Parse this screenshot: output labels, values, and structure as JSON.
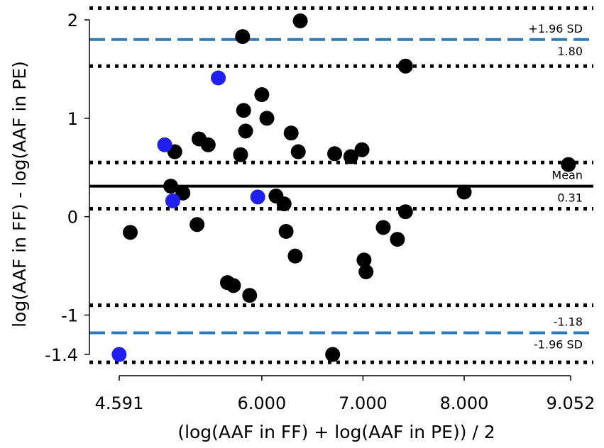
{
  "chart_data": {
    "type": "scatter",
    "xlabel": "(log(AAF in FF) + log(AAF in PE)) / 2",
    "ylabel": "log(AAF in FF) - log(AAF in PE)",
    "xlim": [
      4.591,
      9.052
    ],
    "ylim": [
      -1.4,
      2.0
    ],
    "x_ticks": [
      {
        "value": 4.591,
        "label": "4.591"
      },
      {
        "value": 6.0,
        "label": "6.000"
      },
      {
        "value": 7.0,
        "label": "7.000"
      },
      {
        "value": 8.0,
        "label": "8.000"
      },
      {
        "value": 9.052,
        "label": "9.052"
      }
    ],
    "y_ticks": [
      {
        "value": 2,
        "label": "2"
      },
      {
        "value": 1,
        "label": "1"
      },
      {
        "value": 0,
        "label": "0"
      },
      {
        "value": -1,
        "label": "-1"
      },
      {
        "value": -1.4,
        "label": "-1.4"
      }
    ],
    "grid": false,
    "reference_lines": [
      {
        "id": "mean",
        "value": 0.31,
        "style": "solid",
        "color": "#000000",
        "label_above": "Mean",
        "label_below": "0.31"
      },
      {
        "id": "upper-loa",
        "value": 1.8,
        "style": "dashed",
        "color": "#2b7bba",
        "label_above": "+1.96 SD",
        "label_below": "1.80"
      },
      {
        "id": "lower-loa",
        "value": -1.18,
        "style": "dashed",
        "color": "#2b7bba",
        "label_above": "-1.18",
        "label_below": "-1.96 SD"
      }
    ],
    "ci_lines": [
      2.12,
      1.53,
      0.55,
      0.08,
      -0.9,
      -1.48
    ],
    "series": [
      {
        "color": "#000000",
        "points": [
          [
            4.7,
            -0.16
          ],
          [
            5.14,
            0.66
          ],
          [
            5.1,
            0.31
          ],
          [
            5.22,
            0.24
          ],
          [
            5.36,
            -0.08
          ],
          [
            5.38,
            0.79
          ],
          [
            5.47,
            0.73
          ],
          [
            5.66,
            -0.67
          ],
          [
            5.72,
            -0.7
          ],
          [
            5.79,
            0.63
          ],
          [
            5.82,
            1.08
          ],
          [
            5.81,
            1.83
          ],
          [
            5.84,
            0.87
          ],
          [
            5.88,
            -0.8
          ],
          [
            6.0,
            1.24
          ],
          [
            6.05,
            1.0
          ],
          [
            6.14,
            0.21
          ],
          [
            6.22,
            0.13
          ],
          [
            6.24,
            -0.15
          ],
          [
            6.29,
            0.85
          ],
          [
            6.33,
            -0.4
          ],
          [
            6.36,
            0.66
          ],
          [
            6.38,
            1.99
          ],
          [
            6.72,
            0.64
          ],
          [
            6.7,
            -1.4
          ],
          [
            6.88,
            0.61
          ],
          [
            6.99,
            0.68
          ],
          [
            7.01,
            -0.44
          ],
          [
            7.03,
            -0.56
          ],
          [
            7.2,
            -0.11
          ],
          [
            7.34,
            -0.23
          ],
          [
            7.42,
            0.05
          ],
          [
            7.42,
            1.53
          ],
          [
            8.0,
            0.25
          ],
          [
            9.03,
            0.53
          ]
        ]
      },
      {
        "color": "#1f1ff0",
        "points": [
          [
            4.59,
            -1.4
          ],
          [
            5.04,
            0.73
          ],
          [
            5.12,
            0.16
          ],
          [
            5.57,
            1.41
          ],
          [
            5.96,
            0.2
          ]
        ]
      }
    ]
  }
}
